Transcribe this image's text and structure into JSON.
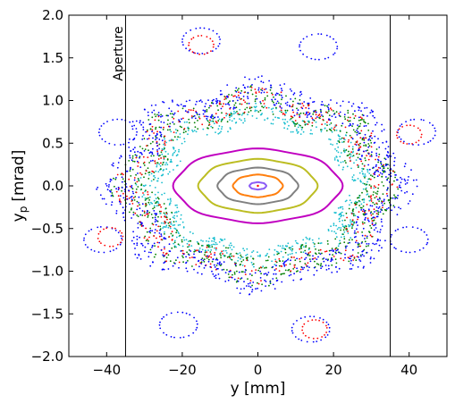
{
  "chart_data": {
    "type": "scatter",
    "title": "",
    "xlabel": "y [mm]",
    "ylabel_main": "y",
    "ylabel_sub": "p",
    "ylabel_unit": "[mrad]",
    "xlim": [
      -50,
      50
    ],
    "ylim": [
      -2.0,
      2.0
    ],
    "xticks": [
      -40,
      -20,
      0,
      20,
      40
    ],
    "xtick_labels": [
      "−40",
      "−20",
      "0",
      "20",
      "40"
    ],
    "yticks": [
      -2.0,
      -1.5,
      -1.0,
      -0.5,
      0.0,
      0.5,
      1.0,
      1.5,
      2.0
    ],
    "ytick_labels": [
      "−2.0",
      "−1.5",
      "−1.0",
      "−0.5",
      "0.0",
      "0.5",
      "1.0",
      "1.5",
      "2.0"
    ],
    "grid": false,
    "legend": "none",
    "aperture": {
      "label": "Aperture",
      "positions": [
        -35,
        35
      ],
      "color": "#000000"
    },
    "center_point": {
      "x": 0,
      "y": 0,
      "color": "#ff0000"
    },
    "closed_orbits": [
      {
        "color": "#8b5cf6",
        "rx": 2.2,
        "ry": 0.042
      },
      {
        "color": "#ff7f0e",
        "rx": 6.5,
        "ry": 0.13
      },
      {
        "color": "#808080",
        "rx": 10.5,
        "ry": 0.21
      },
      {
        "color": "#bcbd22",
        "rx": 15.5,
        "ry": 0.31
      },
      {
        "color": "#c000c0",
        "rx": 22.0,
        "ry": 0.43
      }
    ],
    "chaotic_bands": [
      {
        "color": "#17becf",
        "r_min": 0.72,
        "r_max": 0.92,
        "count": 620
      },
      {
        "color": "#008000",
        "r_min": 0.8,
        "r_max": 1.12,
        "count": 760
      },
      {
        "color": "#ff0000",
        "r_min": 0.84,
        "r_max": 1.1,
        "count": 380
      },
      {
        "color": "#0000ff",
        "r_min": 0.92,
        "r_max": 1.22,
        "count": 860
      }
    ],
    "island_chains": [
      {
        "color": "#0000ff",
        "centers": [
          [
            -15,
            1.7
          ],
          [
            16,
            1.63
          ],
          [
            -37,
            0.63
          ],
          [
            42,
            0.63
          ],
          [
            -41,
            -0.63
          ],
          [
            40,
            -0.63
          ],
          [
            -21,
            -1.63
          ],
          [
            14,
            -1.68
          ]
        ],
        "radius_x": 5.0,
        "radius_y": 0.15,
        "count": 24
      },
      {
        "color": "#ff0000",
        "centers": [
          [
            -15,
            1.65
          ],
          [
            15,
            -1.68
          ],
          [
            40,
            0.6
          ],
          [
            -39,
            -0.6
          ]
        ],
        "radius_x": 3.3,
        "radius_y": 0.11,
        "count": 18
      }
    ]
  }
}
